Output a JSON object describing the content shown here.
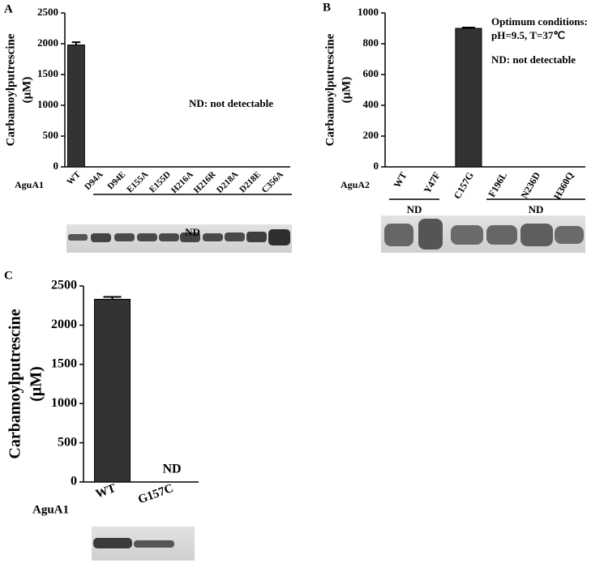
{
  "chart_data": [
    {
      "type": "bar",
      "panel": "A",
      "ylabel": "Carbamoylputrescine",
      "ylabel_unit": "(μM)",
      "row_label": "AguA1",
      "categories": [
        "WT",
        "D94A",
        "D94E",
        "E155A",
        "E155D",
        "H216A",
        "H216R",
        "D218A",
        "D218E",
        "C356A"
      ],
      "values": [
        1980,
        null,
        null,
        null,
        null,
        null,
        null,
        null,
        null,
        null
      ],
      "errors": [
        45,
        null,
        null,
        null,
        null,
        null,
        null,
        null,
        null,
        null
      ],
      "color": "#333333",
      "ylim": [
        0,
        2500
      ],
      "yticks": [
        0,
        500,
        1000,
        1500,
        2000,
        2500
      ],
      "annotations": [
        "ND: not detectable"
      ],
      "group_labels": [
        "ND"
      ]
    },
    {
      "type": "bar",
      "panel": "B",
      "ylabel": "Carbamoylputrescine",
      "ylabel_unit": "(μM)",
      "row_label": "AguA2",
      "categories": [
        "WT",
        "Y47F",
        "C157G",
        "F196L",
        "N236D",
        "H360Q"
      ],
      "values": [
        null,
        null,
        900,
        null,
        null,
        null
      ],
      "errors": [
        null,
        null,
        5,
        null,
        null,
        null
      ],
      "color": "#333333",
      "ylim": [
        0,
        1000
      ],
      "yticks": [
        0,
        200,
        400,
        600,
        800,
        1000
      ],
      "annotations": [
        "Optimum conditions:",
        "pH=9.5, T=37℃",
        "ND: not detectable"
      ],
      "group_labels": [
        "ND",
        "ND"
      ]
    },
    {
      "type": "bar",
      "panel": "C",
      "ylabel": "Carbamoylputrescine",
      "ylabel_unit": "(μM)",
      "row_label": "AguA1",
      "categories": [
        "WT",
        "G157C"
      ],
      "values": [
        2330,
        null
      ],
      "errors": [
        30,
        null
      ],
      "color": "#333333",
      "ylim": [
        0,
        2500
      ],
      "yticks": [
        0,
        500,
        1000,
        1500,
        2000,
        2500
      ],
      "annotations": [
        "ND"
      ],
      "group_labels": []
    }
  ]
}
